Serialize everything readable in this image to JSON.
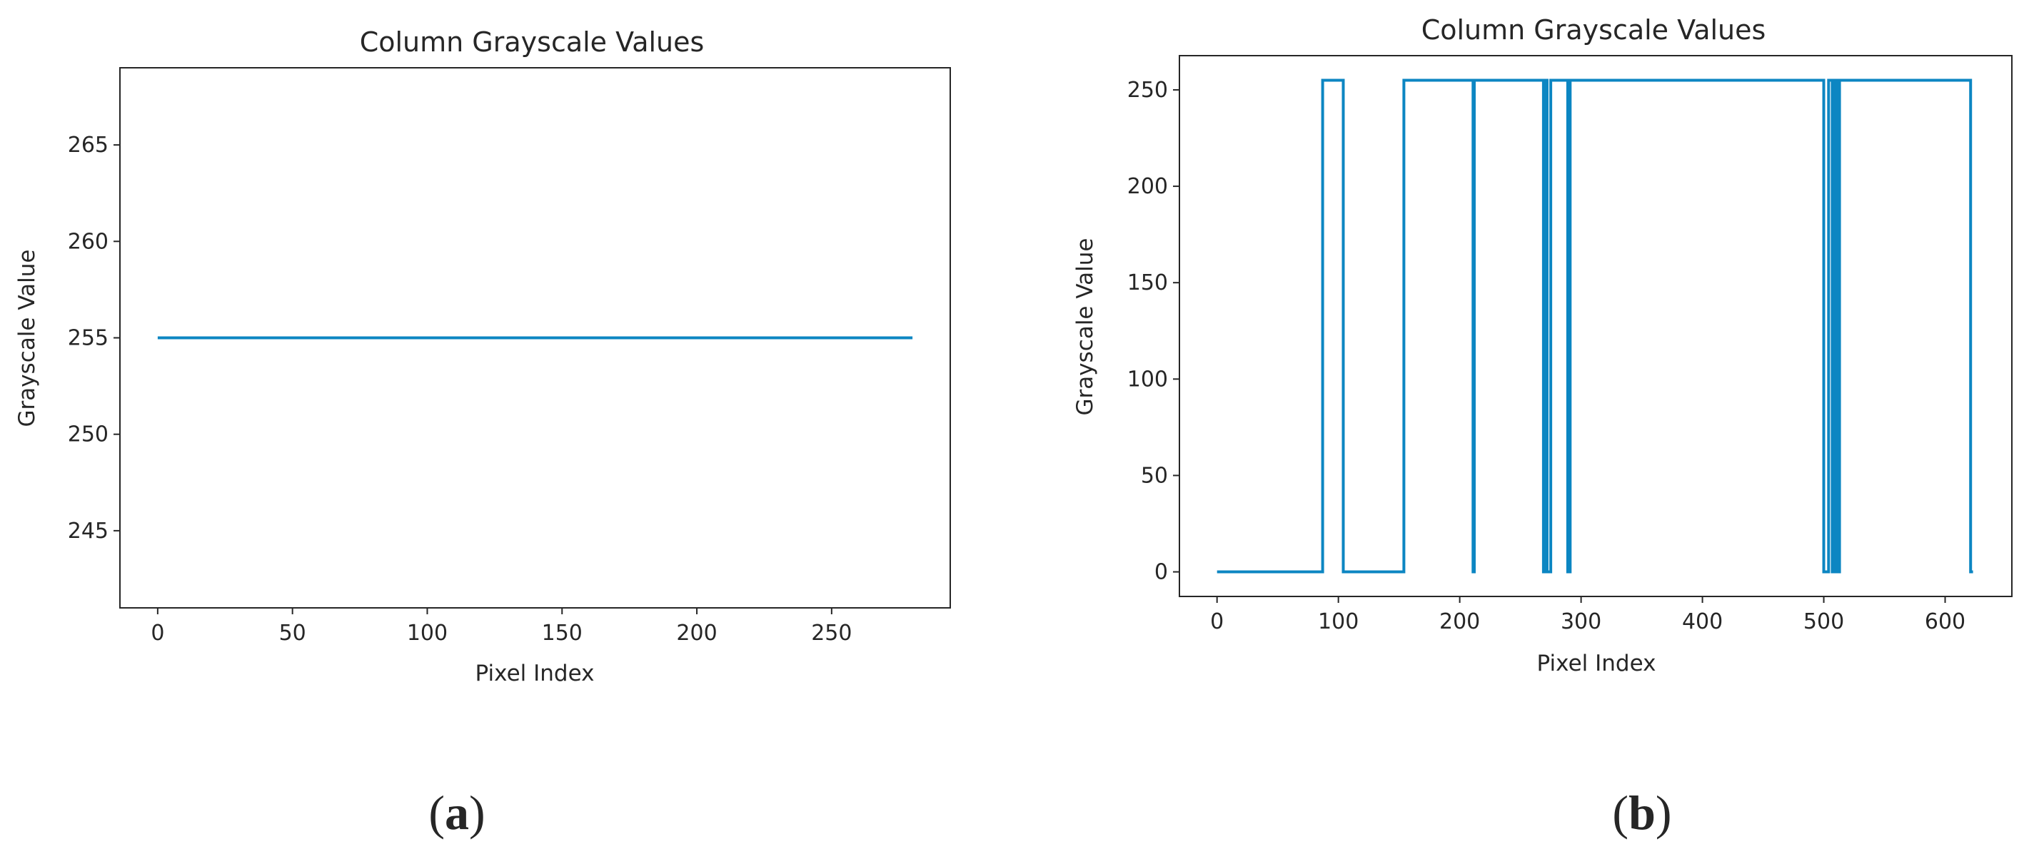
{
  "chart_data": [
    {
      "type": "line",
      "title": "Column Grayscale Values",
      "xlabel": "Pixel Index",
      "ylabel": "Grayscale Value",
      "caption": "a",
      "xlim": [
        -14,
        294
      ],
      "ylim": [
        241,
        269
      ],
      "xticks": [
        0,
        50,
        100,
        150,
        200,
        250
      ],
      "yticks": [
        245,
        250,
        255,
        260,
        265
      ],
      "grid": false,
      "series": [
        {
          "x": [
            0,
            280
          ],
          "y": [
            255,
            255
          ]
        }
      ]
    },
    {
      "type": "line",
      "title": "Column Grayscale Values",
      "xlabel": "Pixel Index",
      "ylabel": "Grayscale Value",
      "caption": "b",
      "xlim": [
        -31,
        655
      ],
      "ylim": [
        -12.75,
        267.75
      ],
      "xticks": [
        0,
        100,
        200,
        300,
        400,
        500,
        600
      ],
      "yticks": [
        0,
        50,
        100,
        150,
        200,
        250
      ],
      "grid": false,
      "series": [
        {
          "x": [
            0,
            87,
            87,
            104,
            104,
            154,
            154,
            211,
            211,
            212,
            212,
            269,
            269,
            270,
            270,
            272,
            272,
            275,
            275,
            289,
            289,
            291,
            291,
            500,
            500,
            504,
            504,
            507,
            507,
            509,
            509,
            511,
            511,
            513,
            513,
            621,
            621,
            623
          ],
          "y": [
            0,
            0,
            255,
            255,
            0,
            0,
            255,
            255,
            0,
            0,
            255,
            255,
            0,
            0,
            255,
            255,
            0,
            0,
            255,
            255,
            0,
            0,
            255,
            255,
            0,
            0,
            255,
            255,
            0,
            0,
            255,
            255,
            0,
            0,
            255,
            255,
            0,
            0
          ]
        }
      ]
    }
  ]
}
